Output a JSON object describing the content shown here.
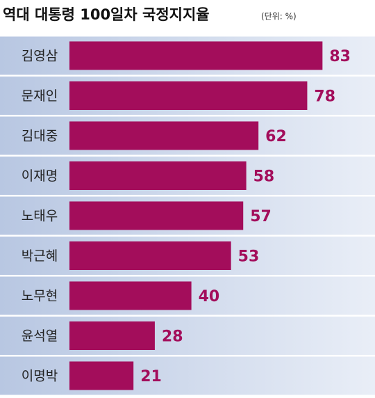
{
  "chart_data": {
    "type": "barh",
    "title": "역대 대통령 100일차 국정지지율",
    "subtitle": "(단위: %)",
    "categories": [
      "김영삼",
      "문재인",
      "김대중",
      "이재명",
      "노태우",
      "박근혜",
      "노무현",
      "윤석열",
      "이명박"
    ],
    "values": [
      83,
      78,
      62,
      58,
      57,
      53,
      40,
      28,
      21
    ],
    "color": "#a30d5b"
  }
}
